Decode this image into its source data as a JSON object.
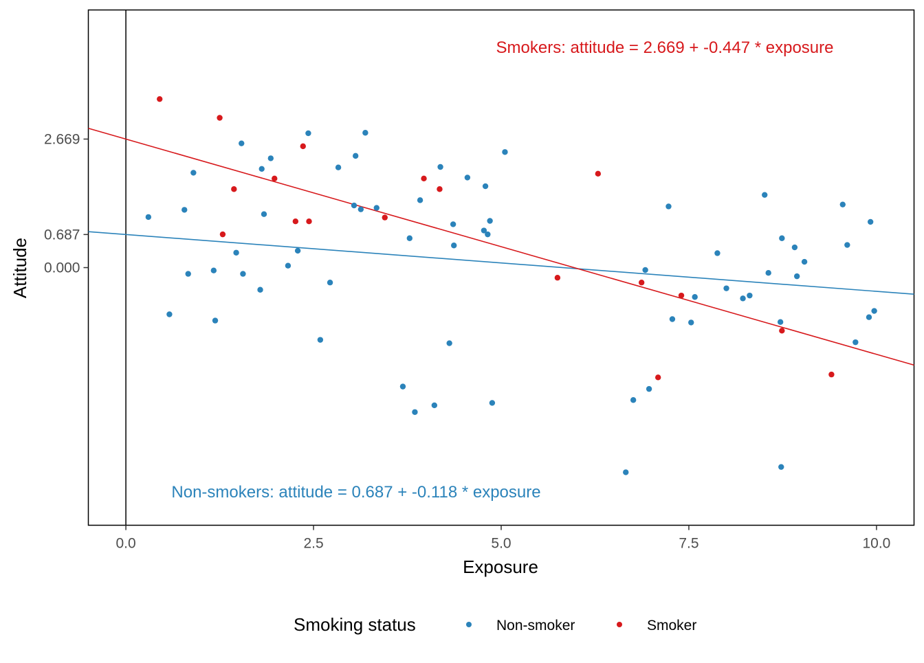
{
  "chart_data": {
    "type": "scatter",
    "xlabel": "Exposure",
    "ylabel": "Attitude",
    "xlim": [
      -0.5,
      10.5
    ],
    "ylim": [
      -5.35,
      5.35
    ],
    "x_ticks": [
      0.0,
      2.5,
      5.0,
      7.5,
      10.0
    ],
    "x_tick_labels": [
      "0.0",
      "2.5",
      "5.0",
      "7.5",
      "10.0"
    ],
    "y_ticks": [
      0.0,
      0.687,
      2.669
    ],
    "y_tick_labels": [
      "0.000",
      "0.687",
      "2.669"
    ],
    "grid": false,
    "vline_x": 0,
    "legend": {
      "title": "Smoking status",
      "position": "bottom",
      "entries": [
        "Non-smoker",
        "Smoker"
      ]
    },
    "colors": {
      "Non-smoker": "#2b83ba",
      "Smoker": "#d7191c"
    },
    "series": [
      {
        "name": "Non-smoker",
        "color": "#2b83ba",
        "points": [
          [
            0.3,
            1.05
          ],
          [
            0.58,
            -0.97
          ],
          [
            0.78,
            1.2
          ],
          [
            0.83,
            -0.13
          ],
          [
            0.9,
            1.97
          ],
          [
            1.17,
            -0.06
          ],
          [
            1.19,
            -1.1
          ],
          [
            1.47,
            0.31
          ],
          [
            1.54,
            2.58
          ],
          [
            1.56,
            -0.13
          ],
          [
            1.79,
            -0.46
          ],
          [
            1.81,
            2.05
          ],
          [
            1.84,
            1.11
          ],
          [
            1.93,
            2.27
          ],
          [
            2.16,
            0.04
          ],
          [
            2.29,
            0.35
          ],
          [
            2.43,
            2.79
          ],
          [
            2.59,
            -1.5
          ],
          [
            2.72,
            -0.31
          ],
          [
            2.83,
            2.08
          ],
          [
            3.04,
            1.29
          ],
          [
            3.06,
            2.32
          ],
          [
            3.13,
            1.21
          ],
          [
            3.19,
            2.8
          ],
          [
            3.34,
            1.24
          ],
          [
            3.69,
            -2.47
          ],
          [
            3.78,
            0.61
          ],
          [
            3.85,
            -3.0
          ],
          [
            3.92,
            1.4
          ],
          [
            4.11,
            -2.86
          ],
          [
            4.19,
            2.09
          ],
          [
            4.31,
            -1.57
          ],
          [
            4.36,
            0.9
          ],
          [
            4.37,
            0.46
          ],
          [
            4.55,
            1.87
          ],
          [
            4.77,
            0.77
          ],
          [
            4.79,
            1.69
          ],
          [
            4.82,
            0.69
          ],
          [
            4.85,
            0.97
          ],
          [
            4.88,
            -2.81
          ],
          [
            5.05,
            2.4
          ],
          [
            6.66,
            -4.25
          ],
          [
            6.76,
            -2.75
          ],
          [
            6.92,
            -0.05
          ],
          [
            6.97,
            -2.52
          ],
          [
            7.23,
            1.27
          ],
          [
            7.28,
            -1.07
          ],
          [
            7.53,
            -1.14
          ],
          [
            7.58,
            -0.61
          ],
          [
            7.88,
            0.3
          ],
          [
            8.0,
            -0.43
          ],
          [
            8.22,
            -0.64
          ],
          [
            8.31,
            -0.58
          ],
          [
            8.51,
            1.51
          ],
          [
            8.56,
            -0.11
          ],
          [
            8.72,
            -1.13
          ],
          [
            8.73,
            -4.14
          ],
          [
            8.74,
            0.61
          ],
          [
            8.91,
            0.42
          ],
          [
            8.94,
            -0.18
          ],
          [
            9.04,
            0.12
          ],
          [
            9.55,
            1.31
          ],
          [
            9.61,
            0.47
          ],
          [
            9.72,
            -1.55
          ],
          [
            9.9,
            -1.03
          ],
          [
            9.92,
            0.95
          ],
          [
            9.97,
            -0.9
          ]
        ]
      },
      {
        "name": "Smoker",
        "color": "#d7191c",
        "points": [
          [
            0.45,
            3.5
          ],
          [
            1.25,
            3.11
          ],
          [
            1.29,
            0.69
          ],
          [
            1.44,
            1.63
          ],
          [
            1.98,
            1.85
          ],
          [
            2.26,
            0.96
          ],
          [
            2.36,
            2.52
          ],
          [
            2.44,
            0.96
          ],
          [
            3.45,
            1.04
          ],
          [
            3.97,
            1.85
          ],
          [
            4.18,
            1.63
          ],
          [
            5.75,
            -0.21
          ],
          [
            6.29,
            1.95
          ],
          [
            6.87,
            -0.31
          ],
          [
            7.09,
            -2.28
          ],
          [
            7.4,
            -0.58
          ],
          [
            8.74,
            -1.31
          ],
          [
            9.4,
            -2.22
          ]
        ]
      }
    ],
    "fit_lines": [
      {
        "name": "Non-smoker",
        "intercept": 0.687,
        "slope": -0.118,
        "color": "#2b83ba"
      },
      {
        "name": "Smoker",
        "intercept": 2.669,
        "slope": -0.447,
        "color": "#d7191c"
      }
    ],
    "annotations": {
      "smokers": "Smokers: attitude = 2.669 + -0.447 * exposure",
      "non_smokers": "Non-smokers: attitude = 0.687 + -0.118 * exposure"
    }
  }
}
